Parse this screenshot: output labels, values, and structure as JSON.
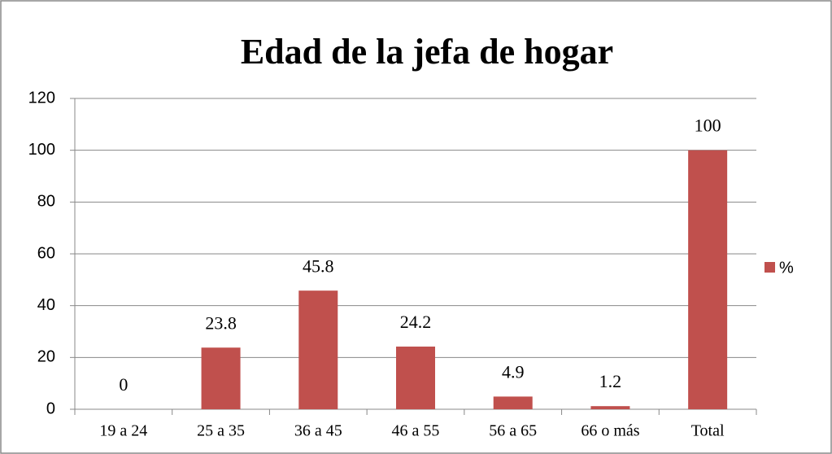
{
  "chart_data": {
    "type": "bar",
    "title": "Edad de la jefa de hogar",
    "categories": [
      "19 a 24",
      "25 a 35",
      "36 a 45",
      "46 a 55",
      "56 a 65",
      "66 o más",
      "Total"
    ],
    "series": [
      {
        "name": "%",
        "color": "#c0504d",
        "values": [
          0,
          23.8,
          45.8,
          24.2,
          4.9,
          1.2,
          100
        ]
      }
    ],
    "ylim": [
      0,
      120
    ],
    "yticks": [
      0,
      20,
      40,
      60,
      80,
      100,
      120
    ],
    "grid": true,
    "legend": "right"
  }
}
